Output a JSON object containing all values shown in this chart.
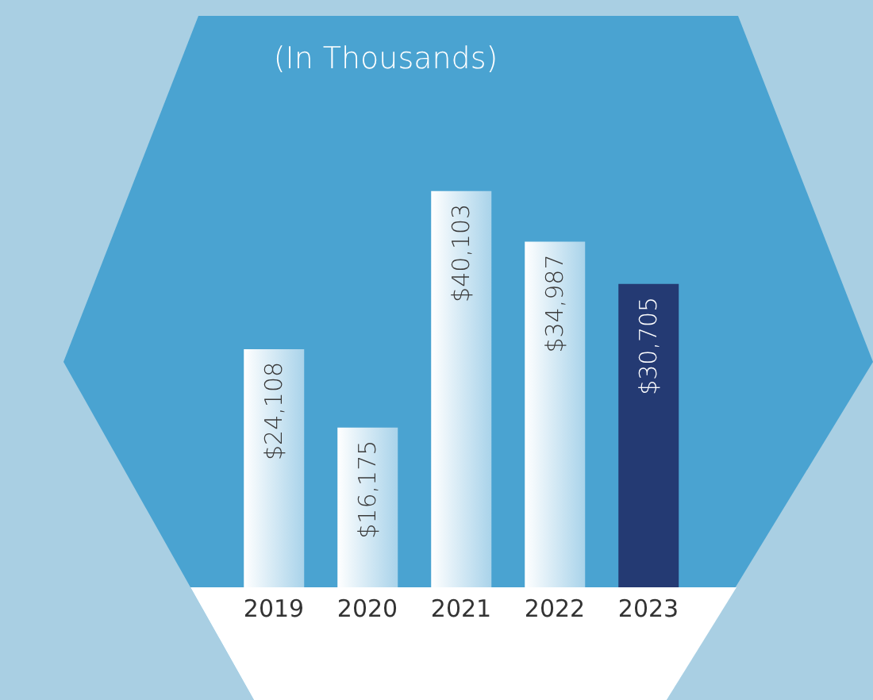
{
  "chart_data": {
    "type": "bar",
    "title": "(In Thousands)",
    "categories": [
      "2019",
      "2020",
      "2021",
      "2022",
      "2023"
    ],
    "values": [
      24108,
      16175,
      40103,
      34987,
      30705
    ],
    "colors": [
      "#a9d3ea",
      "#a9d3ea",
      "#a9d3ea",
      "#a9d3ea",
      "#243a73"
    ],
    "value_labels": [
      "$24,108",
      "$16,175",
      "$40,103",
      "$34,987",
      "$30,705"
    ]
  }
}
